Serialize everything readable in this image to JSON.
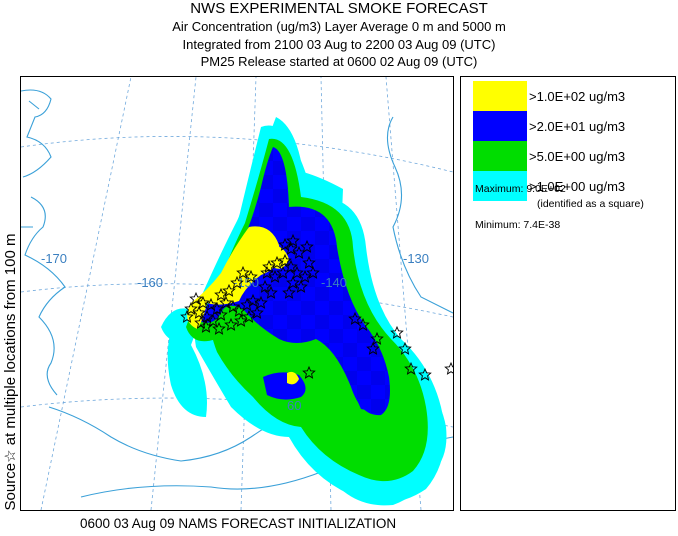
{
  "header": {
    "title": "NWS EXPERIMENTAL SMOKE FORECAST",
    "line2": "Air Concentration (ug/m3) Layer Average    0 m and  5000 m",
    "line3": "Integrated from 2100 03 Aug to 2200 03 Aug 09 (UTC)",
    "line4": "PM25 Release started at 0600 02 Aug 09 (UTC)"
  },
  "side_label": "Source☆ at multiple locations   from  100 m",
  "map": {
    "longitude_labels": [
      "-170",
      "-160",
      "-150",
      "-140",
      "-130"
    ],
    "latitude_labels": [
      "60"
    ],
    "colors": {
      "coast": "#3aa0d8",
      "grid": "#6fa8dc",
      "level_1": "#00ffff",
      "level_5": "#00dd00",
      "level_20": "#0000ff",
      "level_100": "#ffff00"
    },
    "source_marker": "star-icon"
  },
  "legend": {
    "items": [
      {
        "label": ">1.0E+02 ug/m3",
        "color": "#ffff00"
      },
      {
        "label": ">2.0E+01 ug/m3",
        "color": "#0000ff"
      },
      {
        "label": ">5.0E+00 ug/m3",
        "color": "#00dd00"
      },
      {
        "label": ">1.0E+00 ug/m3",
        "color": "#00ffff"
      }
    ],
    "maximum": "Maximum: 9.0E+02",
    "maximum_note": "(identified as a square)",
    "minimum": "Minimum: 7.4E-38"
  },
  "footer": "0600 03 Aug 09 NAMS FORECAST INITIALIZATION"
}
